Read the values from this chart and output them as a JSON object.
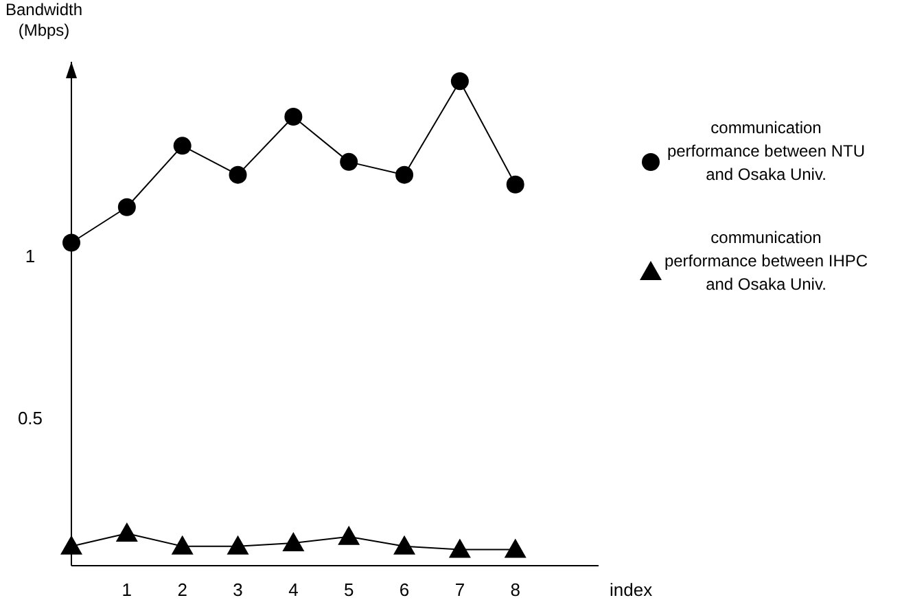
{
  "chart_data": {
    "type": "line",
    "xlabel": "index",
    "ylabel": "Bandwidth (Mbps)",
    "x": [
      0,
      1,
      2,
      3,
      4,
      5,
      6,
      7,
      8
    ],
    "xlim": [
      0,
      9.5
    ],
    "xticks": [
      1,
      2,
      3,
      4,
      5,
      6,
      7,
      8
    ],
    "ylim": [
      0.04,
      1.6
    ],
    "yticks": [
      0.5,
      1
    ],
    "grid": false,
    "legend": "right",
    "series": [
      {
        "name": "communication performance between NTU and Osaka Univ.",
        "color": "#000000",
        "marker": "circle",
        "values": [
          1.04,
          1.15,
          1.34,
          1.25,
          1.43,
          1.29,
          1.25,
          1.54,
          1.22
        ]
      },
      {
        "name": "communication performance between IHPC and Osaka Univ.",
        "color": "#000000",
        "marker": "triangle",
        "values": [
          0.1,
          0.14,
          0.1,
          0.1,
          0.11,
          0.13,
          0.1,
          0.09,
          0.09
        ]
      }
    ]
  }
}
